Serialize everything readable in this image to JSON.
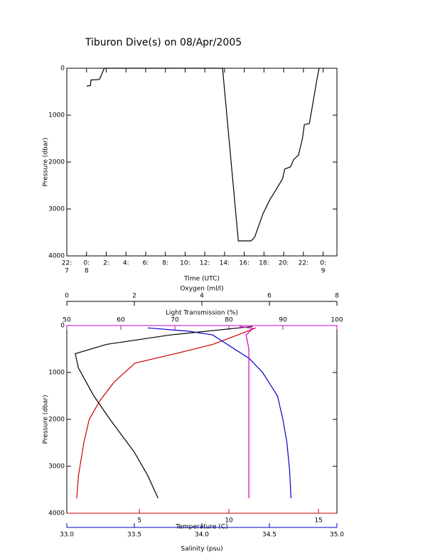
{
  "chart_data": [
    {
      "type": "line",
      "title": "Tiburon Dive(s) on 08/Apr/2005",
      "xlabel": "Time (UTC)",
      "ylabel": "Pressure (dbar)",
      "y_inverted": true,
      "xlim": [
        -2,
        25.4
      ],
      "ylim": [
        0,
        4000
      ],
      "yticks": [
        0,
        1000,
        2000,
        3000,
        4000
      ],
      "xticks": [
        {
          "value": -2,
          "label": "22:"
        },
        {
          "value": 0,
          "label": "0:"
        },
        {
          "value": 2,
          "label": "2:"
        },
        {
          "value": 4,
          "label": "4:"
        },
        {
          "value": 6,
          "label": "6:"
        },
        {
          "value": 8,
          "label": "8:"
        },
        {
          "value": 10,
          "label": "10:"
        },
        {
          "value": 12,
          "label": "12:"
        },
        {
          "value": 14,
          "label": "14:"
        },
        {
          "value": 16,
          "label": "16:"
        },
        {
          "value": 18,
          "label": "18:"
        },
        {
          "value": 20,
          "label": "20:"
        },
        {
          "value": 22,
          "label": "22:"
        },
        {
          "value": 24,
          "label": "0:"
        }
      ],
      "xtick_days": [
        {
          "value": -2,
          "label": "7"
        },
        {
          "value": 0,
          "label": "8"
        },
        {
          "value": 24,
          "label": "9"
        }
      ],
      "series": [
        {
          "color": "#000000",
          "x": [
            0.02,
            0.4,
            0.45,
            1.3,
            1.5,
            1.8,
            13.8,
            15.4,
            16.7,
            17.06,
            17.9,
            18.6,
            19.2,
            19.9,
            20.1,
            20.7,
            21.0,
            21.5,
            21.9,
            22.1,
            22.6,
            23.0,
            23.4,
            23.6
          ],
          "values": [
            380,
            370,
            250,
            240,
            150,
            0,
            0,
            3680,
            3680,
            3600,
            3100,
            2800,
            2600,
            2350,
            2150,
            2100,
            1950,
            1850,
            1500,
            1200,
            1180,
            700,
            200,
            0
          ]
        }
      ]
    },
    {
      "type": "profile",
      "ylabel": "Pressure (dbar)",
      "y_inverted": true,
      "ylim": [
        0,
        4000
      ],
      "yticks": [
        0,
        1000,
        2000,
        3000,
        4000
      ],
      "x_axes": [
        {
          "label": "Light Transmission (%)",
          "color": "#cc00cc",
          "side": "top",
          "xlim": [
            50,
            100
          ],
          "xticks": [
            50,
            60,
            70,
            80,
            90,
            100
          ]
        },
        {
          "label": "Oxygen (ml/l)",
          "color": "#000000",
          "side": "top",
          "xlim": [
            0,
            8
          ],
          "xticks": [
            0,
            2,
            4,
            6,
            8
          ]
        },
        {
          "label": "Temperature (C)",
          "color": "#cc0000",
          "side": "bottom",
          "xlim": [
            0.95,
            16.03
          ],
          "xticks": [
            5,
            10,
            15
          ]
        },
        {
          "label": "Salinity (psu)",
          "color": "#0000cc",
          "side": "bottom",
          "xlim": [
            33.0,
            35.0
          ],
          "xticks": [
            {
              "value": 33.0,
              "label": "33.0"
            },
            33.5,
            {
              "value": 34.0,
              "label": "34.0"
            },
            34.5,
            {
              "value": 35.0,
              "label": "35.0"
            }
          ]
        }
      ],
      "series": [
        {
          "color": "#cc0000",
          "x_axis": 2,
          "x": [
            11.5,
            10.5,
            9.1,
            7.0,
            4.76,
            3.6,
            2.8,
            2.2,
            1.9,
            1.6,
            1.5
          ],
          "values": [
            50,
            200,
            400,
            600,
            800,
            1200,
            1600,
            2000,
            2500,
            3200,
            3680
          ]
        },
        {
          "color": "#0000cc",
          "x_axis": 3,
          "x": [
            33.6,
            33.9,
            34.08,
            34.35,
            34.45,
            34.56,
            34.6,
            34.63,
            34.65,
            34.66
          ],
          "values": [
            50,
            120,
            200,
            700,
            1000,
            1500,
            2000,
            2500,
            3100,
            3680
          ]
        },
        {
          "color": "#000000",
          "x_axis": 1,
          "x": [
            5.5,
            3.07,
            1.18,
            0.25,
            0.34,
            0.8,
            1.28,
            2.0,
            2.4,
            2.7
          ],
          "values": [
            20,
            200,
            400,
            600,
            900,
            1500,
            2000,
            2700,
            3200,
            3680
          ]
        },
        {
          "color": "#cc00cc",
          "x_axis": 0,
          "x": [
            82,
            84.5,
            83.2,
            83.7,
            83.7,
            83.7
          ],
          "values": [
            20,
            60,
            200,
            500,
            2000,
            3680
          ]
        }
      ]
    }
  ]
}
